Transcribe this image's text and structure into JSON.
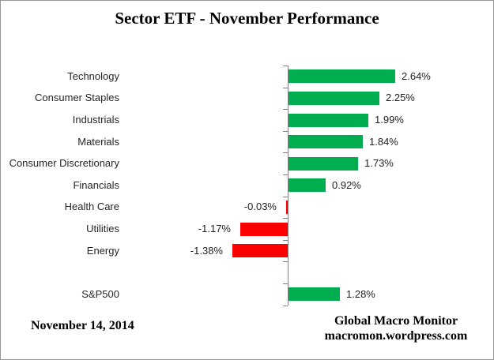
{
  "chart_data": {
    "type": "bar",
    "orientation": "horizontal",
    "title": "Sector ETF - November Performance",
    "xlabel": "",
    "ylabel": "",
    "grid": false,
    "legend": false,
    "axis_range_pct": [
      -1.38,
      2.64
    ],
    "rows": [
      {
        "category": "Technology",
        "value": 2.64,
        "label": "2.64%"
      },
      {
        "category": "Consumer Staples",
        "value": 2.25,
        "label": "2.25%"
      },
      {
        "category": "Industrials",
        "value": 1.99,
        "label": "1.99%"
      },
      {
        "category": "Materials",
        "value": 1.84,
        "label": "1.84%"
      },
      {
        "category": "Consumer Discretionary",
        "value": 1.73,
        "label": "1.73%"
      },
      {
        "category": "Financials",
        "value": 0.92,
        "label": "0.92%"
      },
      {
        "category": "Health Care",
        "value": -0.03,
        "label": "-0.03%"
      },
      {
        "category": "Utilities",
        "value": -1.17,
        "label": "-1.17%"
      },
      {
        "category": "Energy",
        "value": -1.38,
        "label": "-1.38%"
      },
      {
        "category": "",
        "value": null,
        "label": ""
      },
      {
        "category": "S&P500",
        "value": 1.28,
        "label": "1.28%"
      }
    ],
    "colors": {
      "positive": "#00AE50",
      "negative": "#FF0000",
      "axis": "#808080",
      "label_text": "#262626"
    }
  },
  "footer": {
    "date": "November 14, 2014",
    "credit_line1": "Global Macro Monitor",
    "credit_line2": "macromon.wordpress.com"
  }
}
